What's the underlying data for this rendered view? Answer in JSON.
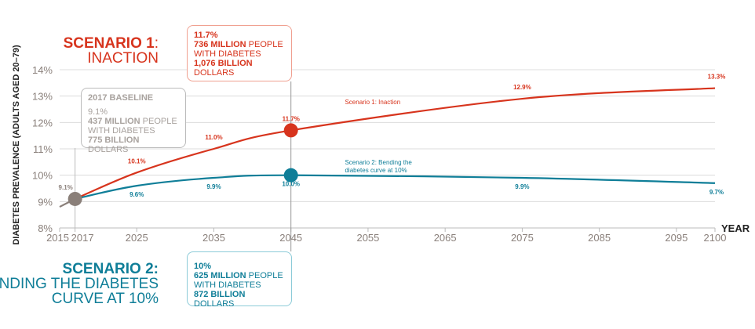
{
  "colors": {
    "inaction": "#d7341d",
    "bending": "#0f7e98",
    "baseline": "#8a7f79",
    "grid": "#dcdcdc",
    "axis": "#8a8a8a"
  },
  "headings": {
    "s1_title": "SCENARIO 1",
    "s1_colon": ":",
    "s1_sub": "INACTION",
    "s2_title": "SCENARIO 2:",
    "s2_sub1": "BENDING THE DIABETES",
    "s2_sub2": "CURVE AT 10%"
  },
  "boxes": {
    "baseline": {
      "title": "2017 BASELINE",
      "pct": "9.1%",
      "people_bold": "437 MILLION",
      "people_rest": " PEOPLE",
      "line3": "WITH DIABETES",
      "dollars_bold": "775 BILLION",
      "dollars_rest": " DOLLARS"
    },
    "inaction": {
      "pct": "11.7%",
      "people_bold": "736 MILLION",
      "people_rest": " PEOPLE",
      "line3": "WITH DIABETES",
      "dollars_bold": "1,076 BILLION",
      "dollars_rest": " DOLLARS"
    },
    "bending": {
      "pct": "10%",
      "people_bold": "625 MILLION",
      "people_rest": " PEOPLE",
      "line3": "WITH DIABETES",
      "dollars_bold": "872 BILLION",
      "dollars_rest": " DOLLARS"
    }
  },
  "chart_data": {
    "type": "line",
    "xlabel": "YEAR",
    "ylabel": "DIABETES PREVALENCE (ADULTS AGED 20–79)",
    "xlim": [
      2015,
      2100
    ],
    "ylim": [
      8,
      14
    ],
    "xticks": [
      2015,
      2017,
      2025,
      2035,
      2045,
      2055,
      2065,
      2075,
      2085,
      2095,
      2100
    ],
    "yticks": [
      8,
      9,
      10,
      11,
      12,
      13,
      14
    ],
    "ytick_labels": [
      "8%",
      "9%",
      "10%",
      "11%",
      "12%",
      "13%",
      "14%"
    ],
    "grid": true,
    "series": [
      {
        "key": "baseline",
        "x": [
          2015,
          2017
        ],
        "y": [
          8.8,
          9.1
        ]
      },
      {
        "key": "inaction",
        "name": "Scenario 1: Inaction",
        "x": [
          2017,
          2025,
          2035,
          2045,
          2075,
          2100
        ],
        "y": [
          9.1,
          10.1,
          11.0,
          11.7,
          12.9,
          13.3
        ],
        "labels": [
          null,
          "10.1%",
          "11.0%",
          "11.7%",
          "12.9%",
          "13.3%"
        ]
      },
      {
        "key": "bending",
        "name": "Scenario 2: Bending the diabetes curve at 10%",
        "name_line1": "Scenario 2: Bending the",
        "name_line2": "diabetes curve at 10%",
        "x": [
          2017,
          2025,
          2035,
          2045,
          2075,
          2100
        ],
        "y": [
          9.1,
          9.6,
          9.9,
          10.0,
          9.9,
          9.7
        ],
        "labels": [
          "9.1%",
          "9.6%",
          "9.9%",
          "10.0%",
          "9.9%",
          "9.7%"
        ]
      }
    ],
    "highlight_points": [
      {
        "year": 2017,
        "value": 9.1,
        "key": "baseline"
      },
      {
        "year": 2045,
        "value": 11.7,
        "key": "inaction"
      },
      {
        "year": 2045,
        "value": 10.0,
        "key": "bending"
      }
    ]
  }
}
